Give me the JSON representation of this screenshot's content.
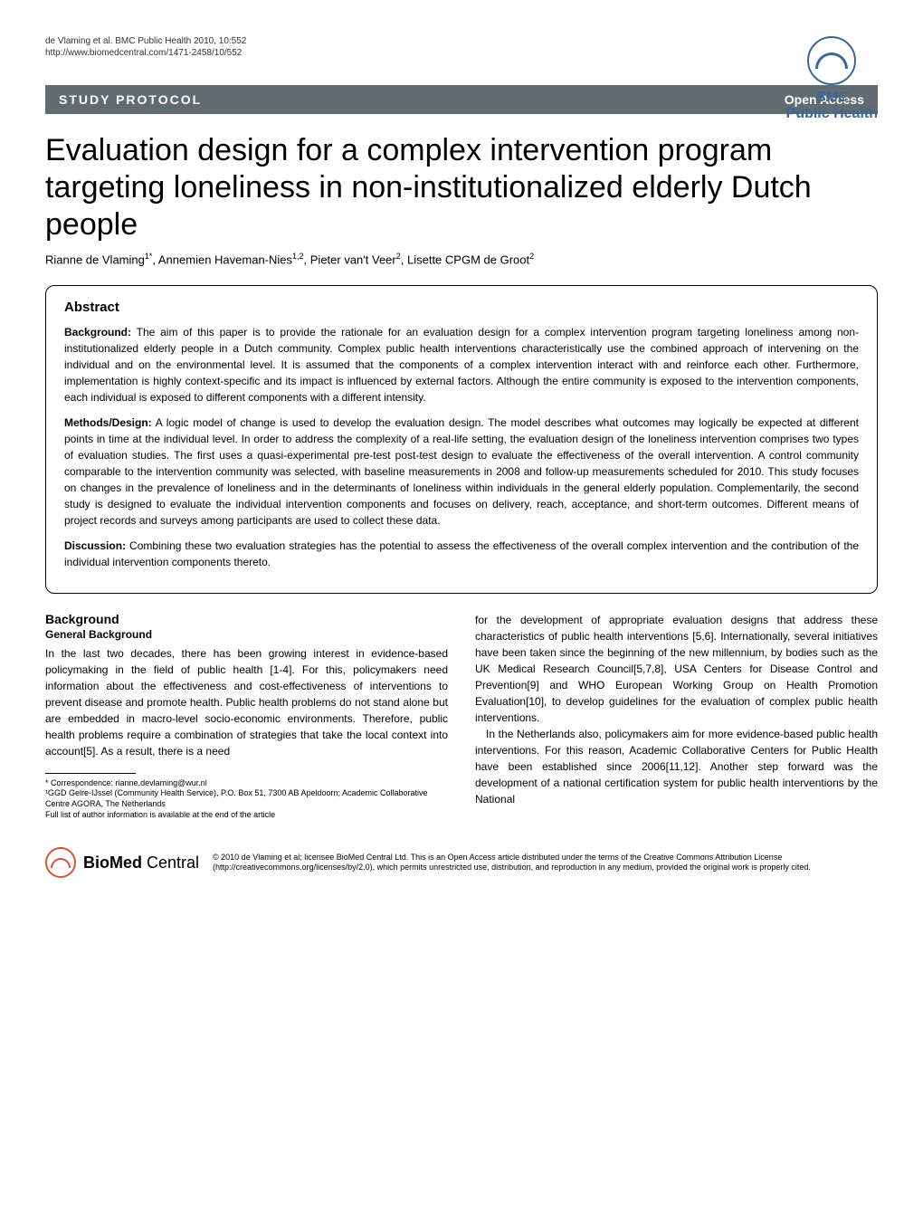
{
  "header": {
    "citation": "de Vlaming et al. BMC Public Health 2010, 10:552",
    "url": "http://www.biomedcentral.com/1471-2458/10/552",
    "journal_prefix": "BMC",
    "journal_name": "Public Health"
  },
  "banner": {
    "left": "STUDY PROTOCOL",
    "right": "Open Access"
  },
  "title": "Evaluation design for a complex intervention program targeting loneliness in non-institutionalized elderly Dutch people",
  "authors_html": "Rianne de Vlaming<sup>1*</sup>, Annemien Haveman-Nies<sup>1,2</sup>, Pieter van't Veer<sup>2</sup>, Lisette CPGM de Groot<sup>2</sup>",
  "abstract": {
    "heading": "Abstract",
    "background_label": "Background:",
    "background": "The aim of this paper is to provide the rationale for an evaluation design for a complex intervention program targeting loneliness among non-institutionalized elderly people in a Dutch community. Complex public health interventions characteristically use the combined approach of intervening on the individual and on the environmental level. It is assumed that the components of a complex intervention interact with and reinforce each other. Furthermore, implementation is highly context-specific and its impact is influenced by external factors. Although the entire community is exposed to the intervention components, each individual is exposed to different components with a different intensity.",
    "methods_label": "Methods/Design:",
    "methods": "A logic model of change is used to develop the evaluation design. The model describes what outcomes may logically be expected at different points in time at the individual level. In order to address the complexity of a real-life setting, the evaluation design of the loneliness intervention comprises two types of evaluation studies. The first uses a quasi-experimental pre-test post-test design to evaluate the effectiveness of the overall intervention. A control community comparable to the intervention community was selected, with baseline measurements in 2008 and follow-up measurements scheduled for 2010. This study focuses on changes in the prevalence of loneliness and in the determinants of loneliness within individuals in the general elderly population. Complementarily, the second study is designed to evaluate the individual intervention components and focuses on delivery, reach, acceptance, and short-term outcomes. Different means of project records and surveys among participants are used to collect these data.",
    "discussion_label": "Discussion:",
    "discussion": "Combining these two evaluation strategies has the potential to assess the effectiveness of the overall complex intervention and the contribution of the individual intervention components thereto."
  },
  "body": {
    "section_heading": "Background",
    "sub_heading": "General Background",
    "col1": "In the last two decades, there has been growing interest in evidence-based policymaking in the field of public health [1-4]. For this, policymakers need information about the effectiveness and cost-effectiveness of interventions to prevent disease and promote health. Public health problems do not stand alone but are embedded in macro-level socio-economic environments. Therefore, public health problems require a combination of strategies that take the local context into account[5]. As a result, there is a need",
    "col2_p1": "for the development of appropriate evaluation designs that address these characteristics of public health interventions [5,6]. Internationally, several initiatives have been taken since the beginning of the new millennium, by bodies such as the UK Medical Research Council[5,7,8], USA Centers for Disease Control and Prevention[9] and WHO European Working Group on Health Promotion Evaluation[10], to develop guidelines for the evaluation of complex public health interventions.",
    "col2_p2": "In the Netherlands also, policymakers aim for more evidence-based public health interventions. For this reason, Academic Collaborative Centers for Public Health have been established since 2006[11,12]. Another step forward was the development of a national certification system for public health interventions by the National"
  },
  "footnote": {
    "correspondence": "* Correspondence: rianne.devlaming@wur.nl",
    "affiliation": "¹GGD Gelre-IJssel (Community Health Service), P.O. Box 51, 7300 AB Apeldoorn; Academic Collaborative Centre AGORA, The Netherlands",
    "full_list": "Full list of author information is available at the end of the article"
  },
  "footer": {
    "logo_bio": "Bio",
    "logo_med": "Med",
    "logo_central": " Central",
    "copyright": "© 2010 de Vlaming et al; licensee BioMed Central Ltd. This is an Open Access article distributed under the terms of the Creative Commons Attribution License (http://creativecommons.org/licenses/by/2.0), which permits unrestricted use, distribution, and reproduction in any medium, provided the original work is properly cited."
  },
  "colors": {
    "banner_bg": "#626b70",
    "banner_text": "#ffffff",
    "logo_blue": "#3b6797",
    "logo_orange": "#d4533a",
    "text": "#000000",
    "background": "#ffffff"
  }
}
